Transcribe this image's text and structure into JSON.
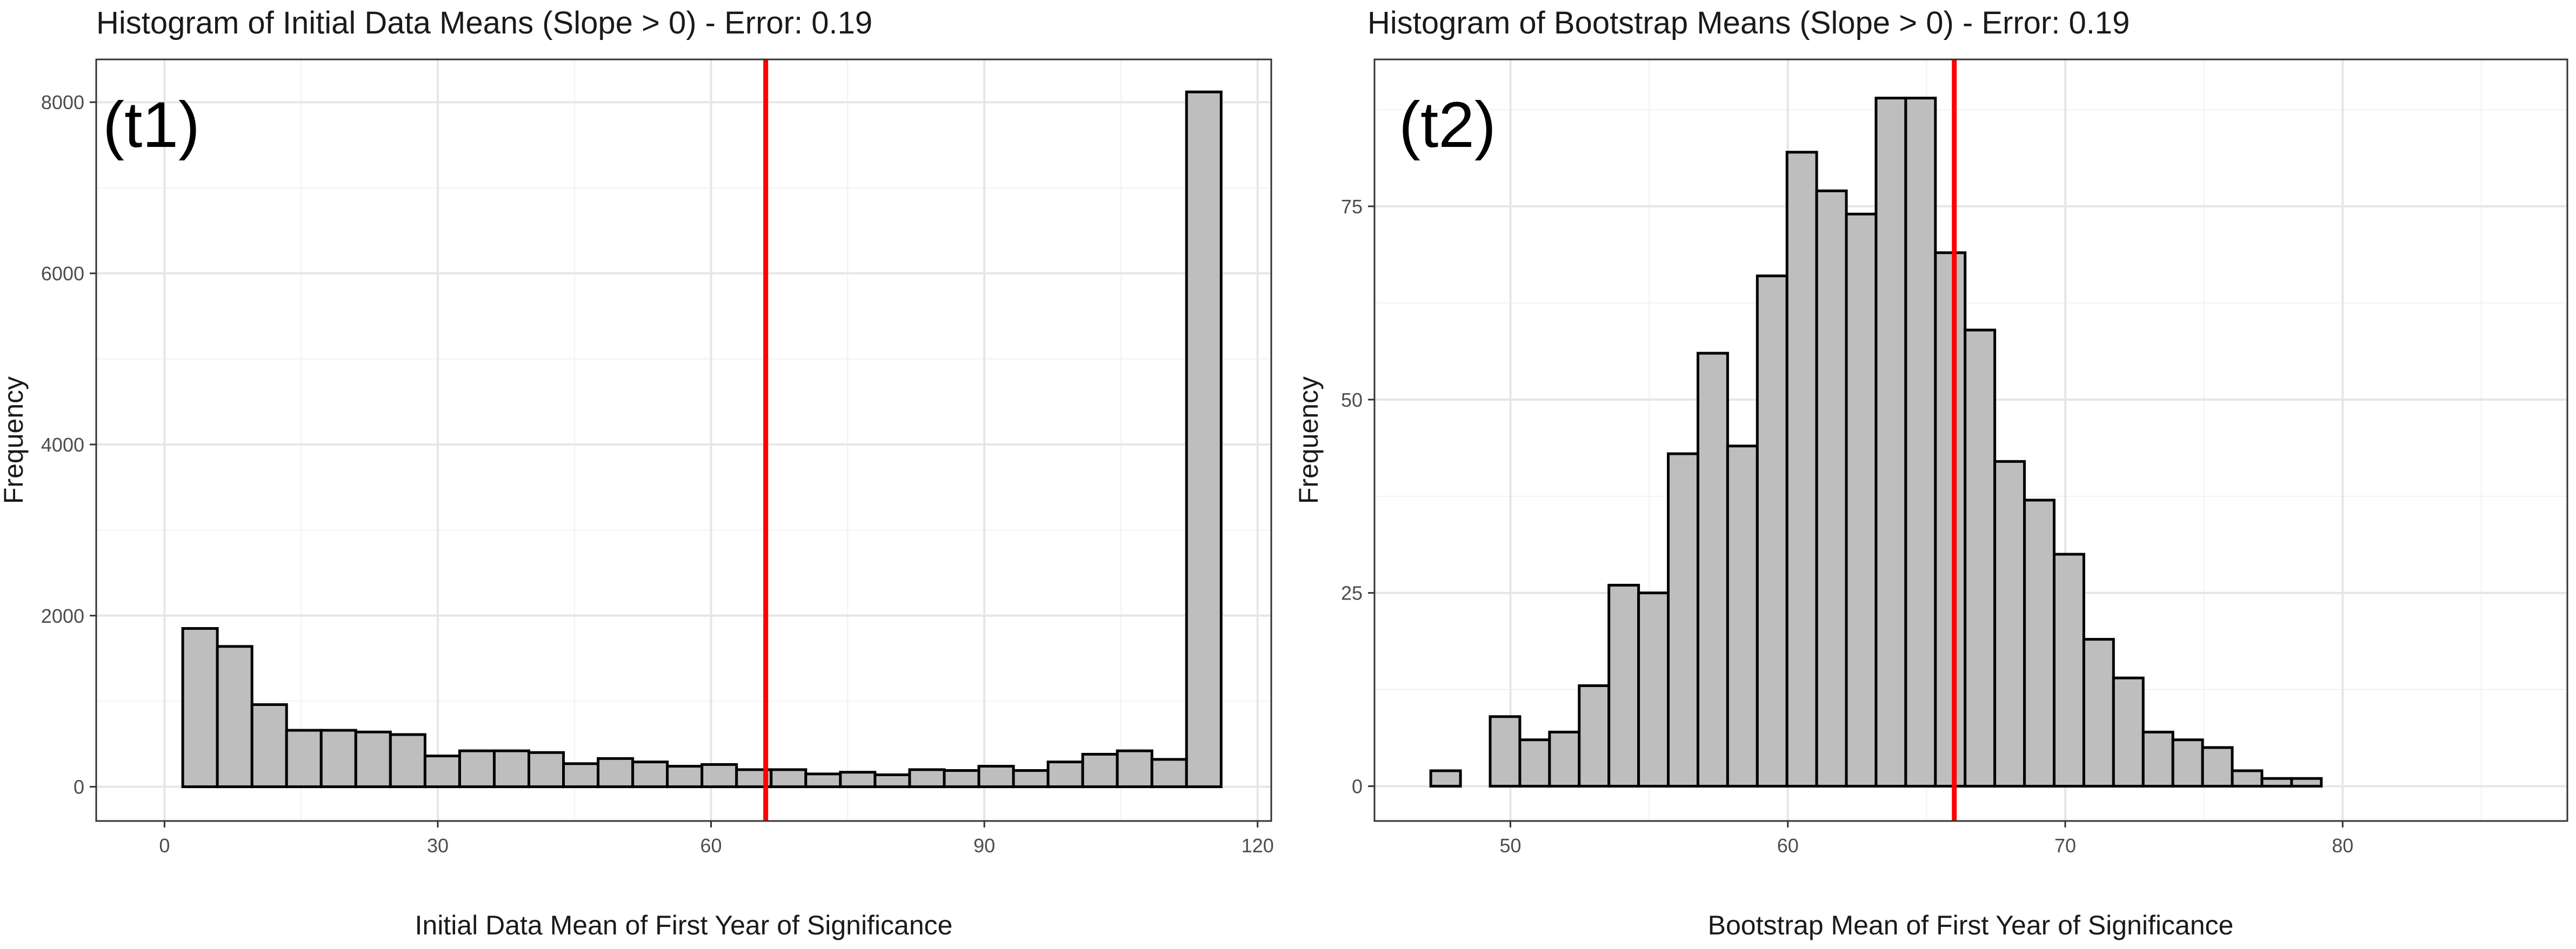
{
  "chart_data": [
    {
      "type": "bar",
      "title": "Histogram of Initial Data Means (Slope > 0) - Error: 0.19",
      "panel_label": "(t1)",
      "xlabel": "Initial Data Mean of First Year of Significance",
      "ylabel": "Frequency",
      "xlim": [
        -7.5,
        121.5
      ],
      "ylim": [
        -400,
        8500
      ],
      "xticks": [
        0,
        30,
        60,
        90,
        120
      ],
      "xtick_labels": [
        "0",
        "30",
        "60",
        "90",
        "120"
      ],
      "yticks": [
        0,
        2000,
        4000,
        6000,
        8000
      ],
      "ytick_labels": [
        "0",
        "2000",
        "4000",
        "6000",
        "8000"
      ],
      "bin_width": 3.8,
      "bin_start": 2.0,
      "values": [
        1850,
        1640,
        960,
        660,
        660,
        640,
        610,
        360,
        420,
        420,
        400,
        270,
        330,
        290,
        240,
        260,
        200,
        200,
        150,
        170,
        140,
        200,
        190,
        240,
        190,
        290,
        380,
        420,
        320,
        8120
      ],
      "reference_line": {
        "x": 66,
        "color": "#ff0000"
      },
      "bar_fill": "#bebebe",
      "bar_stroke": "#000000",
      "grid": true
    },
    {
      "type": "bar",
      "title": "Histogram of Bootstrap Means (Slope > 0) - Error: 0.19",
      "panel_label": "(t2)",
      "xlabel": "Bootstrap Mean of First Year of Significance",
      "ylabel": "Frequency",
      "xlim": [
        45.1,
        88.1
      ],
      "ylim": [
        -4.5,
        94
      ],
      "xticks": [
        50,
        60,
        70,
        80
      ],
      "xtick_labels": [
        "50",
        "60",
        "70",
        "80"
      ],
      "yticks": [
        0,
        25,
        50,
        75
      ],
      "ytick_labels": [
        "0",
        "25",
        "50",
        "75"
      ],
      "bin_width": 1.07,
      "bin_start": 47.13,
      "values": [
        2,
        0,
        9,
        6,
        7,
        13,
        26,
        25,
        43,
        56,
        44,
        66,
        82,
        77,
        74,
        89,
        89,
        69,
        59,
        42,
        37,
        30,
        19,
        14,
        7,
        6,
        5,
        2,
        1,
        1
      ],
      "reference_line": {
        "x": 66,
        "color": "#ff0000"
      },
      "bar_fill": "#bebebe",
      "bar_stroke": "#000000",
      "grid": true
    }
  ]
}
